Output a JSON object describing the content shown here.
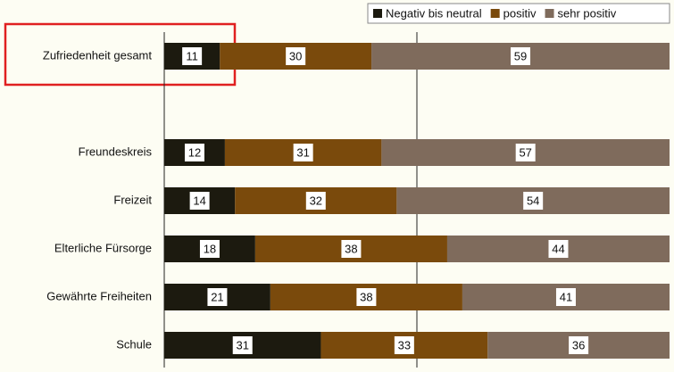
{
  "chart_data": {
    "type": "stacked_barh",
    "categories": [
      "Zufriedenheit gesamt",
      null,
      "Freundeskreis",
      "Freizeit",
      "Elterliche Fürsorge",
      "Gewährte Freiheiten",
      "Schule"
    ],
    "series": [
      {
        "name": "Negativ bis neutral",
        "color": "#1c1a0f",
        "values": [
          11,
          null,
          12,
          14,
          18,
          21,
          31
        ]
      },
      {
        "name": "positiv",
        "color": "#7a4a0c",
        "values": [
          30,
          null,
          31,
          32,
          38,
          38,
          33
        ]
      },
      {
        "name": "sehr positiv",
        "color": "#7f6b5c",
        "values": [
          59,
          null,
          57,
          54,
          44,
          41,
          36
        ]
      }
    ],
    "xlim": [
      0,
      100
    ],
    "xticks": [
      50
    ],
    "grid": true,
    "legend": "top-right"
  }
}
